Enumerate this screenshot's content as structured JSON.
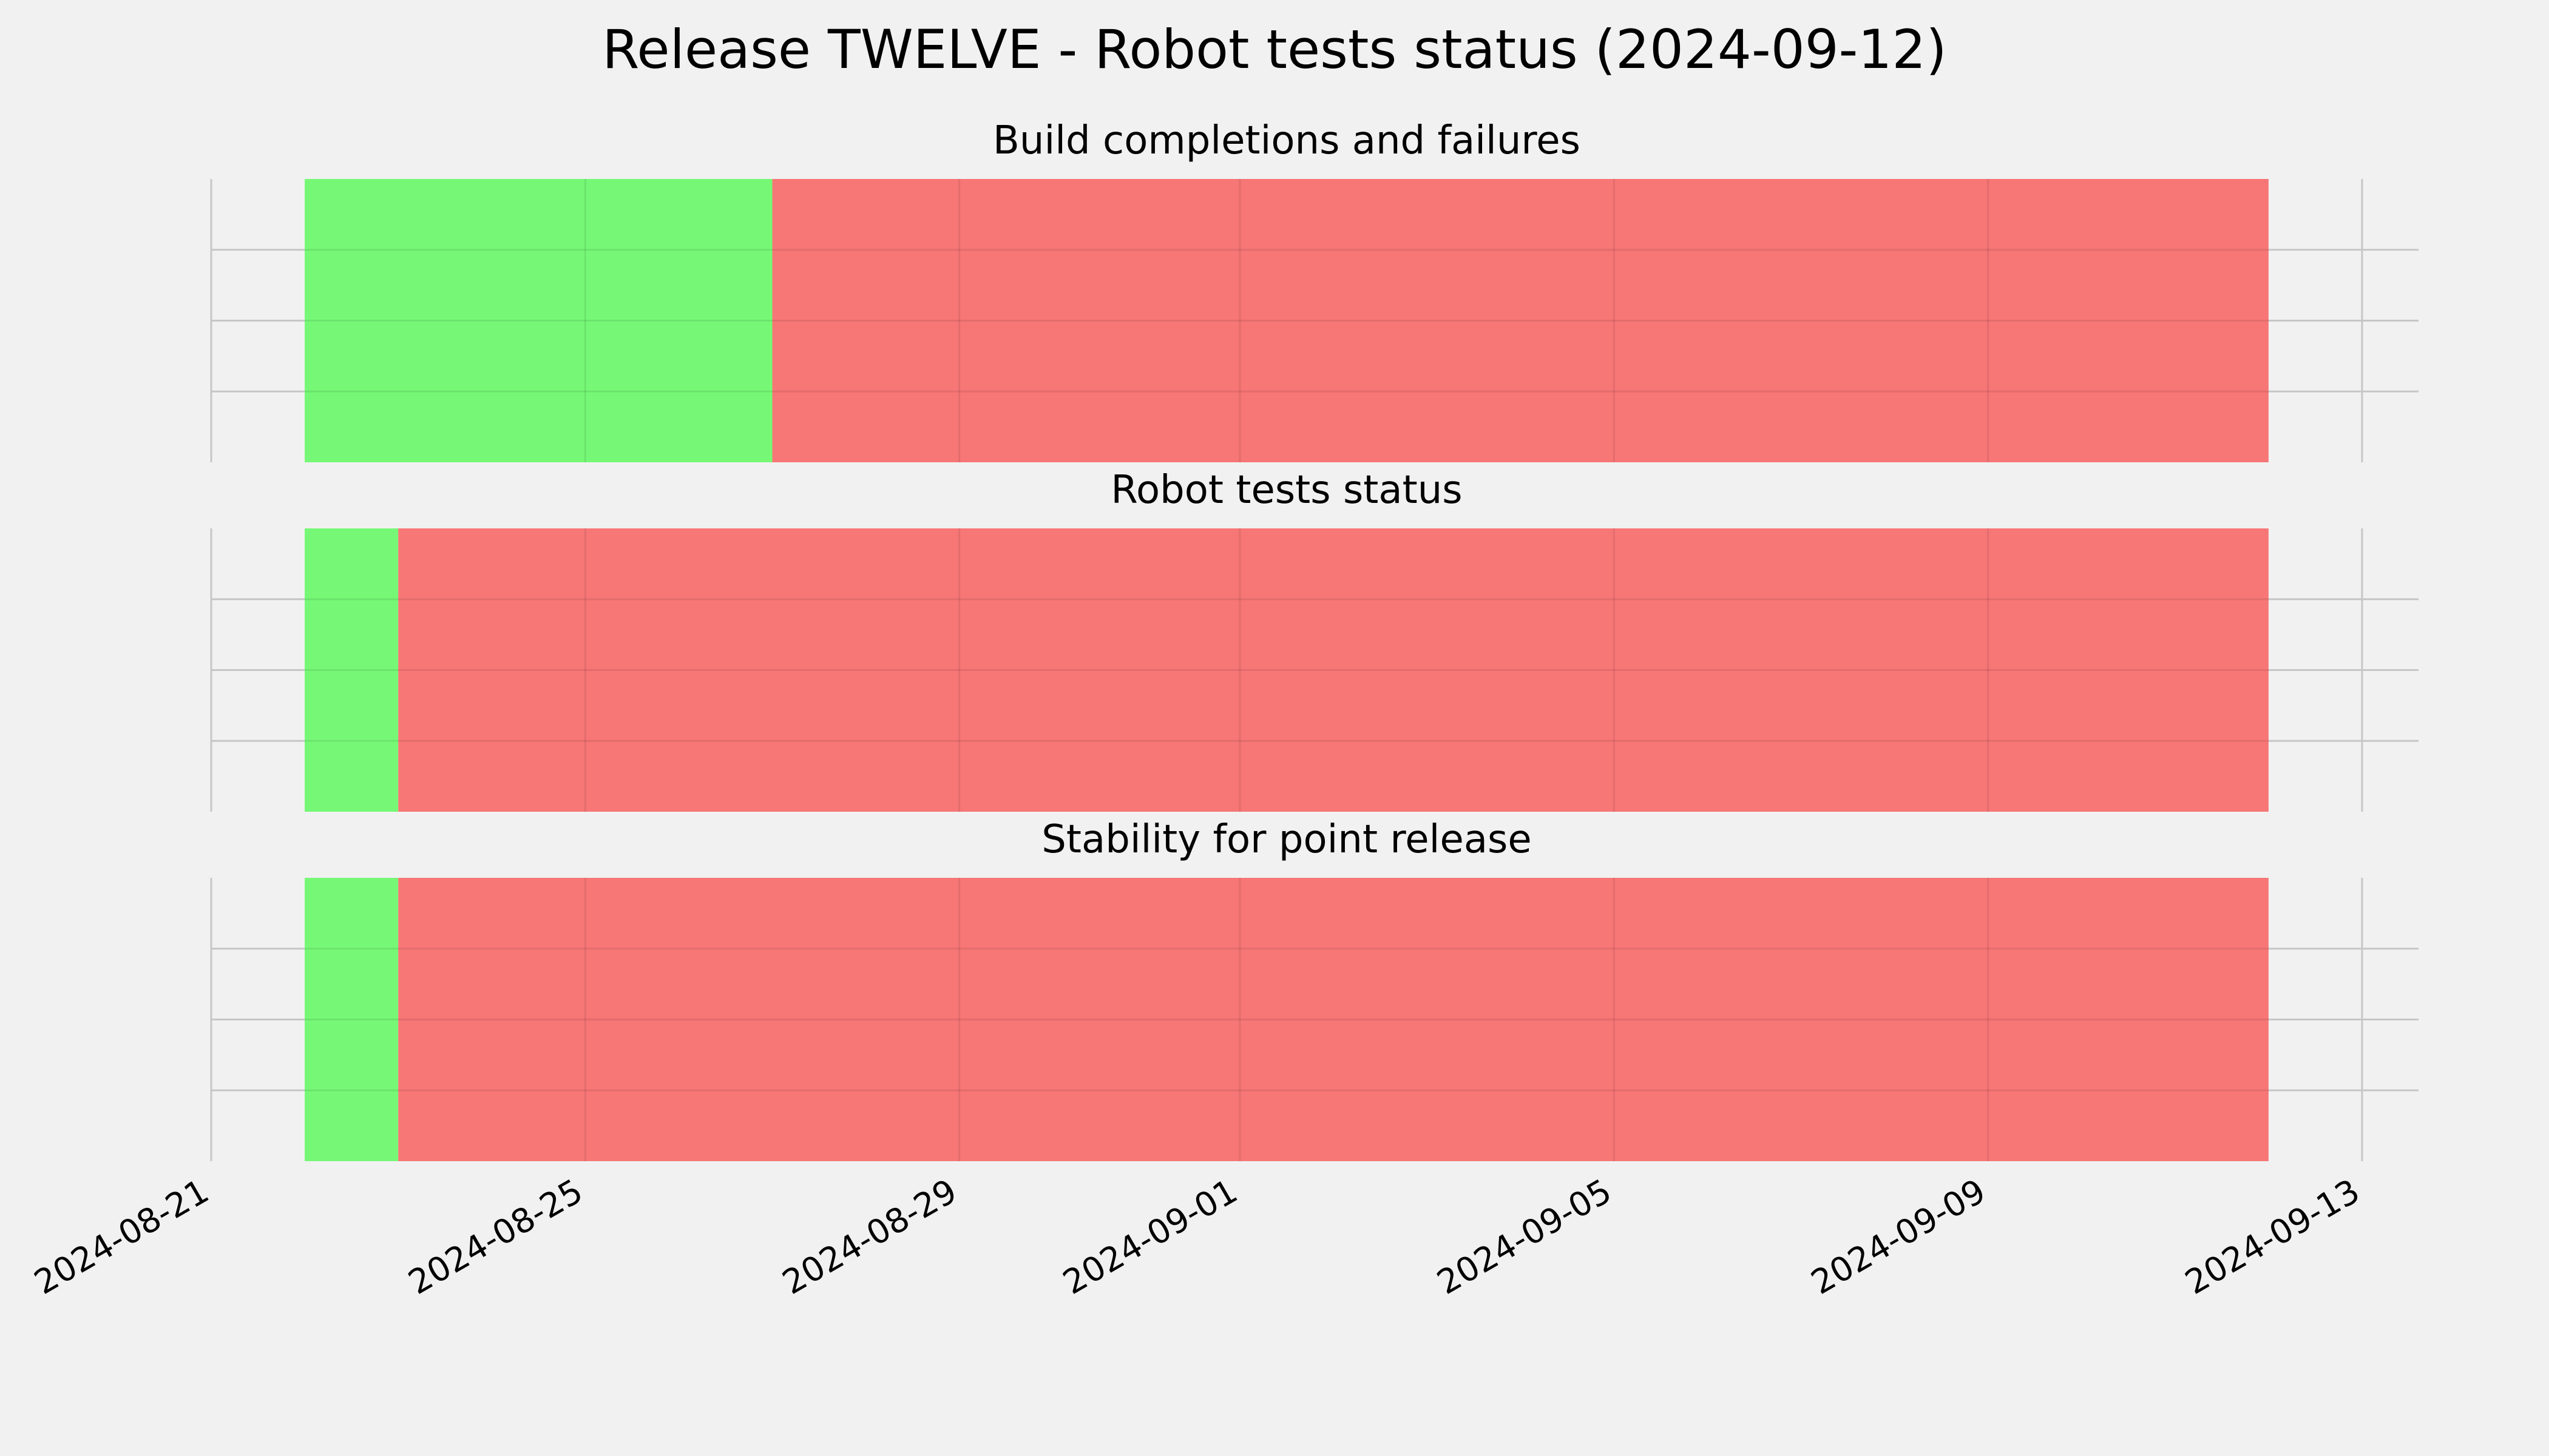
{
  "chart_data": {
    "type": "bar",
    "title": "Release TWELVE - Robot tests status (2024-09-12)",
    "xlabel": "",
    "ylabel": "",
    "x_axis": {
      "scale": "date",
      "range": [
        "2024-08-21",
        "2024-09-13"
      ],
      "ticks": [
        "2024-08-21",
        "2024-08-25",
        "2024-08-29",
        "2024-09-01",
        "2024-09-05",
        "2024-09-09",
        "2024-09-13"
      ]
    },
    "grid": true,
    "colors": {
      "pass": "#76f876",
      "fail": "#f77676",
      "background": "#f1f1f1",
      "grid": "#c6c6c6"
    },
    "panels": [
      {
        "title": "Build completions and failures",
        "segments": [
          {
            "start": "2024-08-22",
            "end": "2024-08-27",
            "status": "pass"
          },
          {
            "start": "2024-08-27",
            "end": "2024-09-12",
            "status": "fail"
          }
        ]
      },
      {
        "title": "Robot tests status",
        "segments": [
          {
            "start": "2024-08-22",
            "end": "2024-08-23",
            "status": "pass"
          },
          {
            "start": "2024-08-23",
            "end": "2024-09-12",
            "status": "fail"
          }
        ]
      },
      {
        "title": "Stability for point release",
        "segments": [
          {
            "start": "2024-08-22",
            "end": "2024-08-23",
            "status": "pass"
          },
          {
            "start": "2024-08-23",
            "end": "2024-09-12",
            "status": "fail"
          }
        ]
      }
    ]
  }
}
